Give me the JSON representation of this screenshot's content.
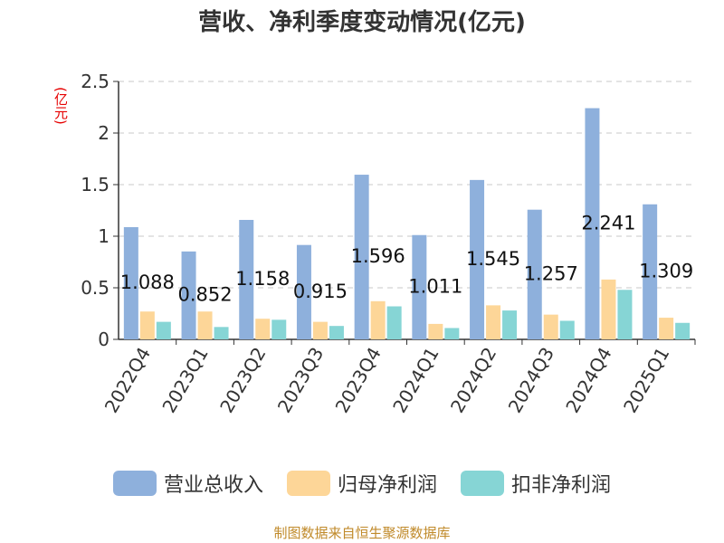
{
  "chart_data": {
    "type": "bar",
    "title": "营收、净利季度变动情况(亿元)",
    "ylabel": "(亿元)",
    "categories": [
      "2022Q4",
      "2023Q1",
      "2023Q2",
      "2023Q3",
      "2023Q4",
      "2024Q1",
      "2024Q2",
      "2024Q3",
      "2024Q4",
      "2025Q1"
    ],
    "ylim": [
      0,
      2.5
    ],
    "yticks": [
      "0",
      "0.5",
      "1",
      "1.5",
      "2",
      "2.5"
    ],
    "grid": true,
    "legend_position": "bottom",
    "series": [
      {
        "name": "营业总收入",
        "color": "#8eb0dc",
        "values": [
          1.088,
          0.852,
          1.158,
          0.915,
          1.596,
          1.011,
          1.545,
          1.257,
          2.241,
          1.309
        ],
        "data_labels": [
          "1.088",
          "0.852",
          "1.158",
          "0.915",
          "1.596",
          "1.011",
          "1.545",
          "1.257",
          "2.241",
          "1.309"
        ]
      },
      {
        "name": "归母净利润",
        "color": "#fdd698",
        "values": [
          0.27,
          0.27,
          0.2,
          0.17,
          0.37,
          0.15,
          0.33,
          0.24,
          0.58,
          0.21
        ]
      },
      {
        "name": "扣非净利润",
        "color": "#86d5d5",
        "values": [
          0.17,
          0.12,
          0.19,
          0.13,
          0.32,
          0.11,
          0.28,
          0.18,
          0.48,
          0.16
        ]
      }
    ]
  },
  "source": "制图数据来自恒生聚源数据库"
}
